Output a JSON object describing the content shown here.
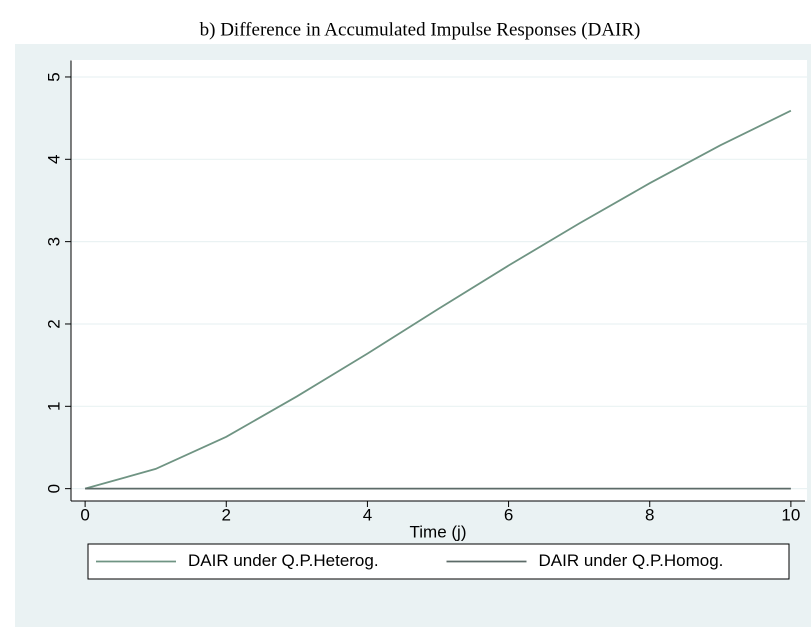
{
  "chart_data": {
    "type": "line",
    "title": "b) Difference in Accumulated Impulse Responses (DAIR)",
    "x_label": "Time (j)",
    "x": [
      0,
      1,
      2,
      3,
      4,
      5,
      6,
      7,
      8,
      9,
      10
    ],
    "series": [
      {
        "name": "DAIR under Q.P.Heterog.",
        "color": "#6f9483",
        "values": [
          0,
          0.24,
          0.63,
          1.12,
          1.64,
          2.18,
          2.71,
          3.22,
          3.71,
          4.17,
          4.59
        ]
      },
      {
        "name": "DAIR under Q.P.Homog.",
        "color": "#5c6b68",
        "values": [
          0,
          0,
          0,
          0,
          0,
          0,
          0,
          0,
          0,
          0,
          0
        ]
      }
    ],
    "xlim": [
      -0.2,
      10.2
    ],
    "xticks": [
      0,
      2,
      4,
      6,
      8,
      10
    ],
    "ylim": [
      -0.15,
      5.2
    ],
    "yticks": [
      0,
      1,
      2,
      3,
      4,
      5
    ],
    "grid": true,
    "legend_position": "bottom"
  }
}
